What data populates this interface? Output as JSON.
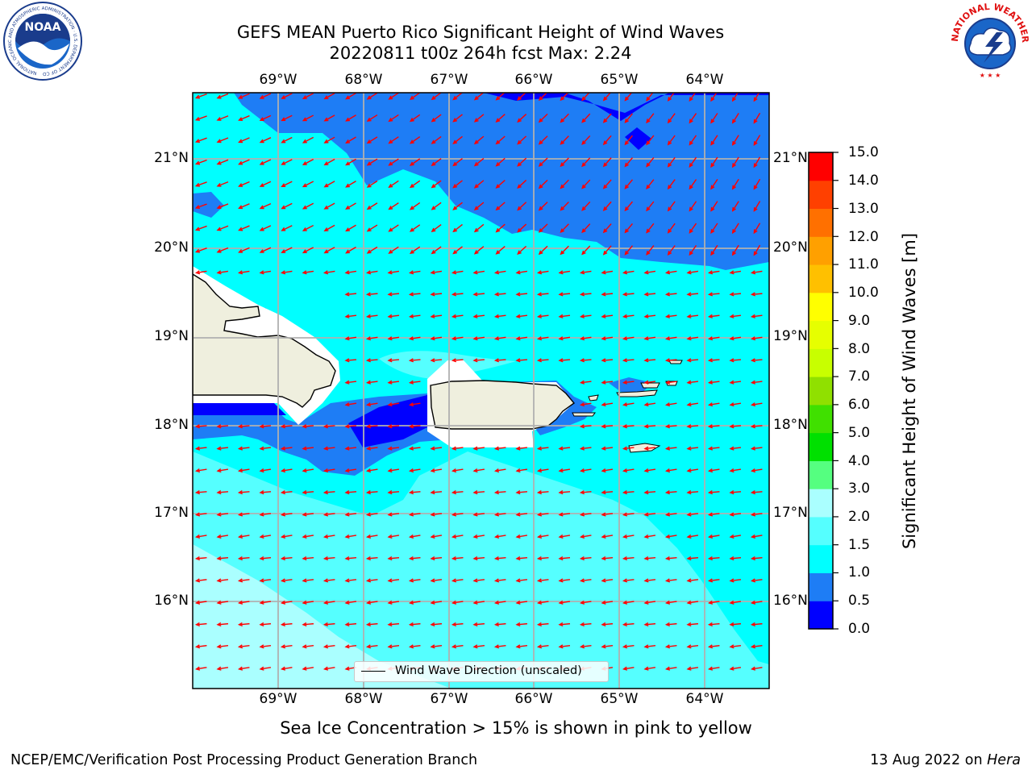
{
  "title": {
    "line1": "GEFS MEAN Puerto Rico Significant Height of Wind Waves",
    "line2": "20220811 t00z 264h fcst   Max: 2.24"
  },
  "logos": {
    "noaa": {
      "text": "NOAA",
      "ring_text": "NATIONAL OCEANIC AND ATMOSPHERIC ADMINISTRATION · U.S. DEPARTMENT OF COMMERCE",
      "icon": "noaa-seagull-logo"
    },
    "nws": {
      "ring_text": "NATIONAL WEATHER SERVICE",
      "icon": "nws-lightning-cloud-logo"
    }
  },
  "map": {
    "lon_range": [
      -70.0,
      -63.25
    ],
    "lat_range": [
      15.0,
      21.75
    ],
    "lat_ticks": [
      "21°N",
      "20°N",
      "19°N",
      "18°N",
      "17°N",
      "16°N"
    ],
    "lon_ticks": [
      "69°W",
      "68°W",
      "67°W",
      "66°W",
      "65°W",
      "64°W"
    ],
    "gridlines": true,
    "field_colors": {
      "0.0-0.5": "#0000ff",
      "0.5-1.0": "#1e7df5",
      "1.0-1.5": "#00ffff",
      "1.5-2.0": "#55ffff",
      "2.0-3.0": "#aaffff",
      "land": "#efefde",
      "arrows": "#ff0000"
    },
    "wave_direction": "from east / northeast"
  },
  "colorbar": {
    "label": "Significant Height of Wind Waves [m]",
    "ticks": [
      "15.0",
      "14.0",
      "13.0",
      "12.0",
      "11.0",
      "10.0",
      "9.0",
      "8.0",
      "7.0",
      "6.0",
      "5.0",
      "4.0",
      "3.0",
      "2.0",
      "1.5",
      "1.0",
      "0.5",
      "0.0"
    ],
    "colors_bottom_to_top": [
      "#0000ff",
      "#1e7df5",
      "#00ffff",
      "#55ffff",
      "#aaffff",
      "#55ff80",
      "#00e000",
      "#40e000",
      "#90e000",
      "#c8ff00",
      "#e6ff00",
      "#ffff00",
      "#ffc000",
      "#ffa000",
      "#ff7000",
      "#ff4000",
      "#ff0000"
    ]
  },
  "legend": {
    "label": "Wind Wave Direction (unscaled)"
  },
  "caption": "Sea Ice Concentration > 15% is shown in pink to yellow",
  "footer": {
    "left": "NCEP/EMC/Verification Post Processing Product Generation Branch",
    "date": "13 Aug 2022 on",
    "machine": "Hera"
  }
}
